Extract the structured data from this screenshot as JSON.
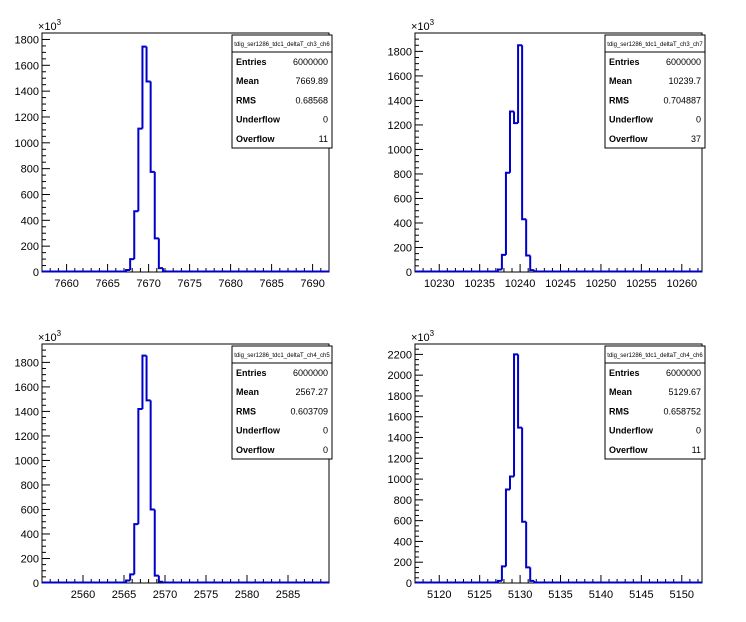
{
  "chart_data": [
    {
      "type": "histogram",
      "title": "tdig_ser1286_tdc1_deltaT_ch3_ch6",
      "multiplier": "×10",
      "multiplier_exp": "3",
      "xlim": [
        7657,
        7692
      ],
      "xticks": [
        7660,
        7665,
        7670,
        7675,
        7680,
        7685,
        7690
      ],
      "ylim": [
        0,
        1850
      ],
      "yticks": [
        0,
        200,
        400,
        600,
        800,
        1000,
        1200,
        1400,
        1600,
        1800
      ],
      "bin_width": 0.5,
      "bins": [
        {
          "x": 7667.5,
          "y": 15
        },
        {
          "x": 7668.0,
          "y": 100
        },
        {
          "x": 7668.5,
          "y": 470
        },
        {
          "x": 7669.0,
          "y": 1110
        },
        {
          "x": 7669.5,
          "y": 1745
        },
        {
          "x": 7670.0,
          "y": 1475
        },
        {
          "x": 7670.5,
          "y": 775
        },
        {
          "x": 7671.0,
          "y": 260
        },
        {
          "x": 7671.5,
          "y": 30
        },
        {
          "x": 7672.0,
          "y": 5
        }
      ],
      "stats": [
        {
          "label": "Entries",
          "value": "6000000"
        },
        {
          "label": "Mean",
          "value": "7669.89"
        },
        {
          "label": "RMS",
          "value": "0.68568"
        },
        {
          "label": "Underflow",
          "value": "0"
        },
        {
          "label": "Overflow",
          "value": "11"
        }
      ]
    },
    {
      "type": "histogram",
      "title": "tdig_ser1286_tdc1_deltaT_ch3_ch7",
      "multiplier": "×10",
      "multiplier_exp": "3",
      "xlim": [
        10227,
        10262.5
      ],
      "xticks": [
        10230,
        10235,
        10240,
        10245,
        10250,
        10255,
        10260
      ],
      "ylim": [
        0,
        1950
      ],
      "yticks": [
        0,
        200,
        400,
        600,
        800,
        1000,
        1200,
        1400,
        1600,
        1800
      ],
      "bin_width": 0.5,
      "bins": [
        {
          "x": 10237.5,
          "y": 20
        },
        {
          "x": 10238.0,
          "y": 140
        },
        {
          "x": 10238.5,
          "y": 810
        },
        {
          "x": 10239.0,
          "y": 1310
        },
        {
          "x": 10239.5,
          "y": 1215
        },
        {
          "x": 10240.0,
          "y": 1850
        },
        {
          "x": 10240.5,
          "y": 430
        },
        {
          "x": 10241.0,
          "y": 135
        },
        {
          "x": 10241.5,
          "y": 15
        }
      ],
      "stats": [
        {
          "label": "Entries",
          "value": "6000000"
        },
        {
          "label": "Mean",
          "value": "10239.7"
        },
        {
          "label": "RMS",
          "value": "0.704887"
        },
        {
          "label": "Underflow",
          "value": "0"
        },
        {
          "label": "Overflow",
          "value": "37"
        }
      ]
    },
    {
      "type": "histogram",
      "title": "tdig_ser1286_tdc1_deltaT_ch4_ch5",
      "multiplier": "×10",
      "multiplier_exp": "3",
      "xlim": [
        2555,
        2590
      ],
      "xticks": [
        2560,
        2565,
        2570,
        2575,
        2580,
        2585
      ],
      "ylim": [
        0,
        1950
      ],
      "yticks": [
        0,
        200,
        400,
        600,
        800,
        1000,
        1200,
        1400,
        1600,
        1800
      ],
      "bin_width": 0.5,
      "bins": [
        {
          "x": 2565.5,
          "y": 20
        },
        {
          "x": 2566.0,
          "y": 70
        },
        {
          "x": 2566.5,
          "y": 480
        },
        {
          "x": 2567.0,
          "y": 1420
        },
        {
          "x": 2567.5,
          "y": 1855
        },
        {
          "x": 2568.0,
          "y": 1490
        },
        {
          "x": 2568.5,
          "y": 600
        },
        {
          "x": 2569.0,
          "y": 60
        },
        {
          "x": 2569.5,
          "y": 10
        }
      ],
      "stats": [
        {
          "label": "Entries",
          "value": "6000000"
        },
        {
          "label": "Mean",
          "value": "2567.27"
        },
        {
          "label": "RMS",
          "value": "0.603709"
        },
        {
          "label": "Underflow",
          "value": "0"
        },
        {
          "label": "Overflow",
          "value": "0"
        }
      ]
    },
    {
      "type": "histogram",
      "title": "tdig_ser1286_tdc1_deltaT_ch4_ch6",
      "multiplier": "×10",
      "multiplier_exp": "3",
      "xlim": [
        5117,
        5152.5
      ],
      "xticks": [
        5120,
        5125,
        5130,
        5135,
        5140,
        5145,
        5150
      ],
      "ylim": [
        0,
        2300
      ],
      "yticks": [
        0,
        200,
        400,
        600,
        800,
        1000,
        1200,
        1400,
        1600,
        1800,
        2000,
        2200
      ],
      "bin_width": 0.5,
      "bins": [
        {
          "x": 5127.5,
          "y": 20
        },
        {
          "x": 5128.0,
          "y": 160
        },
        {
          "x": 5128.5,
          "y": 900
        },
        {
          "x": 5129.0,
          "y": 1025
        },
        {
          "x": 5129.5,
          "y": 2200
        },
        {
          "x": 5130.0,
          "y": 1495
        },
        {
          "x": 5130.5,
          "y": 590
        },
        {
          "x": 5131.0,
          "y": 150
        },
        {
          "x": 5131.5,
          "y": 20
        }
      ],
      "stats": [
        {
          "label": "Entries",
          "value": "6000000"
        },
        {
          "label": "Mean",
          "value": "5129.67"
        },
        {
          "label": "RMS",
          "value": "0.658752"
        },
        {
          "label": "Underflow",
          "value": "0"
        },
        {
          "label": "Overflow",
          "value": "11"
        }
      ]
    }
  ],
  "colors": {
    "histogram_line": "#0000cc",
    "axis": "#000000"
  }
}
